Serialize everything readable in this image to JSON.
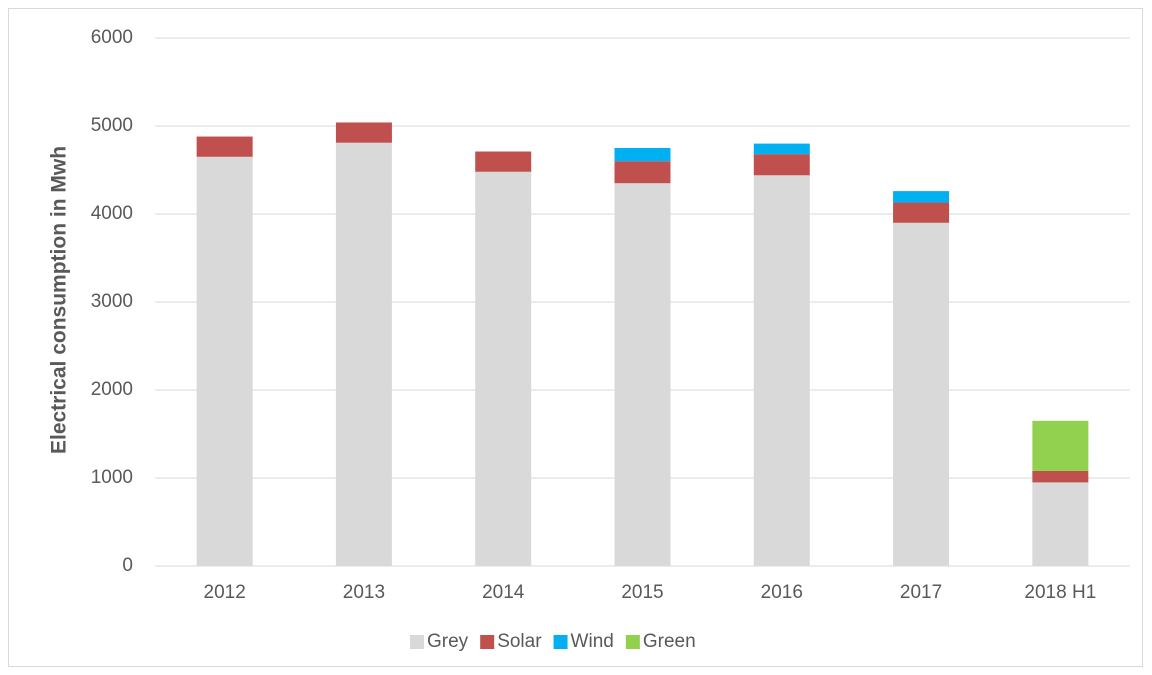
{
  "chart_data": {
    "type": "stacked_bar",
    "y_label": "Electrical consumption in Mwh",
    "categories": [
      "2012",
      "2013",
      "2014",
      "2015",
      "2016",
      "2017",
      "2018 H1"
    ],
    "series": [
      {
        "name": "Grey",
        "color": "#d9d9d9",
        "values": [
          4650,
          4810,
          4480,
          4350,
          4440,
          3900,
          950
        ]
      },
      {
        "name": "Solar",
        "color": "#c0504d",
        "values": [
          230,
          230,
          230,
          250,
          240,
          230,
          130
        ]
      },
      {
        "name": "Wind",
        "color": "#00b0f0",
        "values": [
          null,
          null,
          null,
          150,
          120,
          130,
          null
        ]
      },
      {
        "name": "Green",
        "color": "#92d050",
        "values": [
          null,
          null,
          null,
          null,
          null,
          null,
          570
        ]
      }
    ],
    "ylim": [
      0,
      6000
    ],
    "yticks": [
      0,
      1000,
      2000,
      3000,
      4000,
      5000,
      6000
    ],
    "grid": true,
    "legend": "bottom"
  }
}
